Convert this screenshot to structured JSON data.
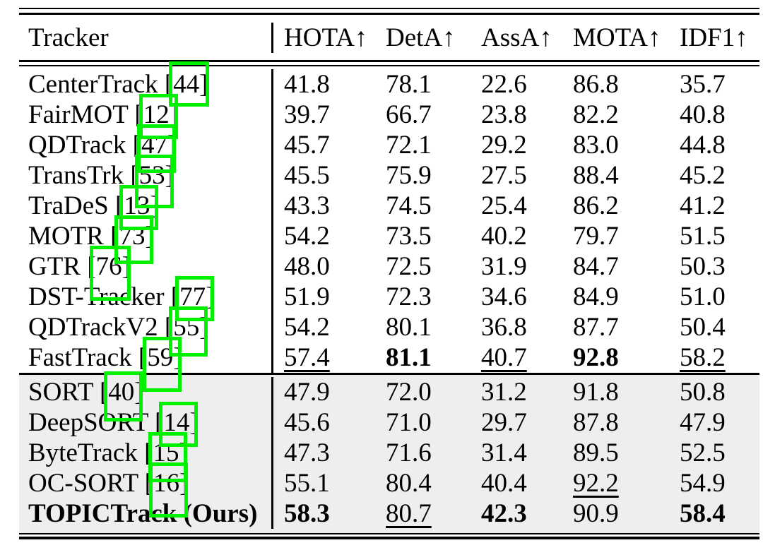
{
  "colors": {
    "annotation_green": "#00f000",
    "section2_background": "#eeeeee",
    "rule_color": "#000000"
  },
  "table": {
    "header": {
      "tracker": "Tracker",
      "cols": [
        "HOTA↑",
        "DetA↑",
        "AssA↑",
        "MOTA↑",
        "IDF1↑"
      ]
    },
    "sections": [
      {
        "rows": [
          {
            "name": "CenterTrack",
            "cite": "44",
            "vals": [
              {
                "v": "41.8"
              },
              {
                "v": "78.1"
              },
              {
                "v": "22.6"
              },
              {
                "v": "86.8"
              },
              {
                "v": "35.7"
              }
            ]
          },
          {
            "name": "FairMOT",
            "cite": "12",
            "vals": [
              {
                "v": "39.7"
              },
              {
                "v": "66.7"
              },
              {
                "v": "23.8"
              },
              {
                "v": "82.2"
              },
              {
                "v": "40.8"
              }
            ]
          },
          {
            "name": "QDTrack",
            "cite": "47",
            "vals": [
              {
                "v": "45.7"
              },
              {
                "v": "72.1"
              },
              {
                "v": "29.2"
              },
              {
                "v": "83.0"
              },
              {
                "v": "44.8"
              }
            ]
          },
          {
            "name": "TransTrk",
            "cite": "53",
            "vals": [
              {
                "v": "45.5"
              },
              {
                "v": "75.9"
              },
              {
                "v": "27.5"
              },
              {
                "v": "88.4"
              },
              {
                "v": "45.2"
              }
            ]
          },
          {
            "name": "TraDeS",
            "cite": "13",
            "vals": [
              {
                "v": "43.3"
              },
              {
                "v": "74.5"
              },
              {
                "v": "25.4"
              },
              {
                "v": "86.2"
              },
              {
                "v": "41.2"
              }
            ]
          },
          {
            "name": "MOTR",
            "cite": "73",
            "vals": [
              {
                "v": "54.2"
              },
              {
                "v": "73.5"
              },
              {
                "v": "40.2"
              },
              {
                "v": "79.7"
              },
              {
                "v": "51.5"
              }
            ]
          },
          {
            "name": "GTR",
            "cite": "76",
            "vals": [
              {
                "v": "48.0"
              },
              {
                "v": "72.5"
              },
              {
                "v": "31.9"
              },
              {
                "v": "84.7"
              },
              {
                "v": "50.3"
              }
            ]
          },
          {
            "name": "DST-Tracker",
            "cite": "77",
            "vals": [
              {
                "v": "51.9"
              },
              {
                "v": "72.3"
              },
              {
                "v": "34.6"
              },
              {
                "v": "84.9"
              },
              {
                "v": "51.0"
              }
            ]
          },
          {
            "name": "QDTrackV2",
            "cite": "55",
            "vals": [
              {
                "v": "54.2"
              },
              {
                "v": "80.1"
              },
              {
                "v": "36.8"
              },
              {
                "v": "87.7"
              },
              {
                "v": "50.4"
              }
            ]
          },
          {
            "name": "FastTrack",
            "cite": "59",
            "vals": [
              {
                "v": "57.4",
                "u": true
              },
              {
                "v": "81.1",
                "b": true
              },
              {
                "v": "40.7",
                "u": true
              },
              {
                "v": "92.8",
                "b": true
              },
              {
                "v": "58.2",
                "u": true
              }
            ]
          }
        ]
      },
      {
        "rows": [
          {
            "name": "SORT",
            "cite": "40",
            "vals": [
              {
                "v": "47.9"
              },
              {
                "v": "72.0"
              },
              {
                "v": "31.2"
              },
              {
                "v": "91.8"
              },
              {
                "v": "50.8"
              }
            ]
          },
          {
            "name": "DeepSORT",
            "cite": "14",
            "vals": [
              {
                "v": "45.6"
              },
              {
                "v": "71.0"
              },
              {
                "v": "29.7"
              },
              {
                "v": "87.8"
              },
              {
                "v": "47.9"
              }
            ]
          },
          {
            "name": "ByteTrack",
            "cite": "15",
            "vals": [
              {
                "v": "47.3"
              },
              {
                "v": "71.6"
              },
              {
                "v": "31.4"
              },
              {
                "v": "89.5"
              },
              {
                "v": "52.5"
              }
            ]
          },
          {
            "name": "OC-SORT",
            "cite": "16",
            "vals": [
              {
                "v": "55.1"
              },
              {
                "v": "80.4"
              },
              {
                "v": "40.4"
              },
              {
                "v": "92.2",
                "u": true
              },
              {
                "v": "54.9"
              }
            ]
          },
          {
            "name": "TOPICTrack (Ours)",
            "cite": null,
            "bold": true,
            "vals": [
              {
                "v": "58.3",
                "b": true
              },
              {
                "v": "80.7",
                "u": true
              },
              {
                "v": "42.3",
                "b": true
              },
              {
                "v": "90.9"
              },
              {
                "v": "58.4",
                "b": true
              }
            ]
          }
        ]
      }
    ]
  }
}
